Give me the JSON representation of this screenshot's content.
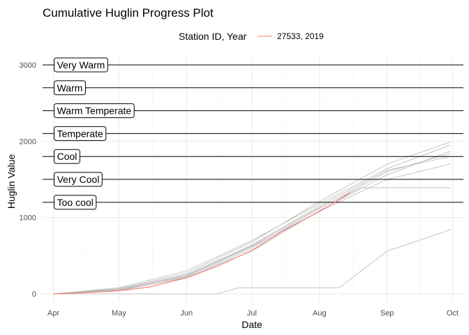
{
  "chart_data": {
    "type": "line",
    "title": "Cumulative Huglin Progress Plot",
    "xlabel": "Date",
    "ylabel": "Huglin Value",
    "x_tick_labels": [
      "Apr",
      "May",
      "Jun",
      "Jul",
      "Aug",
      "Sep",
      "Oct"
    ],
    "x_ticks": [
      "2019-04-01",
      "2019-05-01",
      "2019-06-01",
      "2019-07-01",
      "2019-08-01",
      "2019-09-01",
      "2019-10-01"
    ],
    "xlim": [
      "2019-03-27",
      "2019-10-06"
    ],
    "y_ticks": [
      0,
      1000,
      2000,
      3000
    ],
    "y_tick_labels": [
      "0",
      "1000",
      "2000",
      "3000"
    ],
    "ylim": [
      -100,
      3100
    ],
    "grid": true,
    "legend": {
      "title": "Station ID, Year",
      "placement": "top",
      "entries": [
        {
          "label": "27533, 2019",
          "color": "#F8766D"
        }
      ]
    },
    "thresholds": [
      {
        "label": "Very Warm",
        "value": 3000
      },
      {
        "label": "Warm",
        "value": 2700
      },
      {
        "label": "Warm Temperate",
        "value": 2400
      },
      {
        "label": "Temperate",
        "value": 2100
      },
      {
        "label": "Cool",
        "value": 1800
      },
      {
        "label": "Very Cool",
        "value": 1500
      },
      {
        "label": "Too cool",
        "value": 1200
      }
    ],
    "highlight_series": {
      "name": "27533, 2019",
      "color": "#F8766D",
      "x": [
        "2019-04-01",
        "2019-04-15",
        "2019-05-01",
        "2019-05-15",
        "2019-06-01",
        "2019-06-15",
        "2019-07-01",
        "2019-07-15",
        "2019-08-01",
        "2019-08-15"
      ],
      "y": [
        0,
        15,
        40,
        90,
        210,
        360,
        570,
        820,
        1080,
        1320
      ]
    },
    "background_series_color": "#BEBEBE",
    "background_series": [
      {
        "x": [
          "2019-04-01",
          "2019-05-01",
          "2019-06-01",
          "2019-07-01",
          "2019-08-01",
          "2019-09-01",
          "2019-09-30"
        ],
        "y": [
          0,
          60,
          230,
          620,
          1080,
          1500,
          1700
        ]
      },
      {
        "x": [
          "2019-04-01",
          "2019-05-01",
          "2019-06-01",
          "2019-07-01",
          "2019-08-01",
          "2019-09-01",
          "2019-09-30"
        ],
        "y": [
          0,
          50,
          210,
          600,
          1120,
          1600,
          1840
        ]
      },
      {
        "x": [
          "2019-04-01",
          "2019-05-01",
          "2019-06-01",
          "2019-07-01",
          "2019-08-01",
          "2019-09-01",
          "2019-09-30"
        ],
        "y": [
          0,
          70,
          270,
          680,
          1210,
          1700,
          1990
        ]
      },
      {
        "x": [
          "2019-04-01",
          "2019-05-01",
          "2019-06-01",
          "2019-07-01",
          "2019-08-01",
          "2019-09-01",
          "2019-09-30"
        ],
        "y": [
          0,
          40,
          220,
          560,
          1090,
          1560,
          1870
        ]
      },
      {
        "x": [
          "2019-04-01",
          "2019-05-01",
          "2019-06-01",
          "2019-07-01",
          "2019-08-01",
          "2019-09-01",
          "2019-09-30"
        ],
        "y": [
          0,
          80,
          300,
          700,
          1180,
          1640,
          1950
        ]
      },
      {
        "x": [
          "2019-04-01",
          "2019-05-01",
          "2019-06-01",
          "2019-07-01",
          "2019-08-01",
          "2019-09-01",
          "2019-09-30"
        ],
        "y": [
          0,
          60,
          250,
          640,
          1150,
          1620,
          1800
        ]
      },
      {
        "x": [
          "2019-04-01",
          "2019-05-01",
          "2019-06-01",
          "2019-07-01",
          "2019-08-01",
          "2019-08-20",
          "2019-09-30"
        ],
        "y": [
          0,
          50,
          240,
          630,
          1130,
          1390,
          1390
        ]
      },
      {
        "x": [
          "2019-04-01",
          "2019-06-15",
          "2019-06-25",
          "2019-08-10",
          "2019-09-01",
          "2019-09-30"
        ],
        "y": [
          0,
          0,
          80,
          80,
          560,
          840
        ]
      }
    ]
  }
}
